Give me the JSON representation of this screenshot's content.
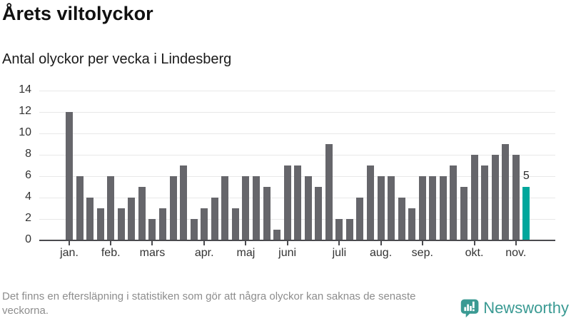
{
  "title": "Årets viltolyckor",
  "subtitle": "Antal olyckor per vecka i Lindesberg",
  "footer": {
    "note": "Det finns en eftersläpning i statistiken som gör att några olyckor kan saknas de senaste veckorna.",
    "brand": "Newsworthy"
  },
  "colors": {
    "bar": "#66666b",
    "highlight": "#00a79c",
    "axis": "#4a4a4e",
    "grid": "#e8e8e8",
    "axis_text": "#333333",
    "note_text": "#8d8d8d",
    "brand": "#3a9a93"
  },
  "chart_data": {
    "type": "bar",
    "title": "Årets viltolyckor",
    "subtitle": "Antal olyckor per vecka i Lindesberg",
    "values": [
      12,
      6,
      4,
      3,
      6,
      3,
      4,
      5,
      2,
      3,
      6,
      7,
      2,
      3,
      4,
      6,
      3,
      6,
      6,
      5,
      1,
      7,
      7,
      6,
      5,
      9,
      2,
      2,
      4,
      7,
      6,
      6,
      4,
      3,
      6,
      6,
      6,
      7,
      5,
      8,
      7,
      8,
      9,
      8,
      5
    ],
    "highlight_index": 44,
    "highlight_value_label": "5",
    "x_tick_labels": [
      "jan.",
      "feb.",
      "mars",
      "apr.",
      "maj",
      "juni",
      "juli",
      "aug.",
      "sep.",
      "okt.",
      "nov."
    ],
    "x_tick_bar_indices": [
      0,
      4,
      8,
      13,
      17,
      21,
      26,
      30,
      34,
      39,
      43
    ],
    "y_ticks": [
      0,
      2,
      4,
      6,
      8,
      10,
      12,
      14
    ],
    "ylim": [
      0,
      14
    ],
    "grid": "horizontal",
    "legend": "none"
  }
}
